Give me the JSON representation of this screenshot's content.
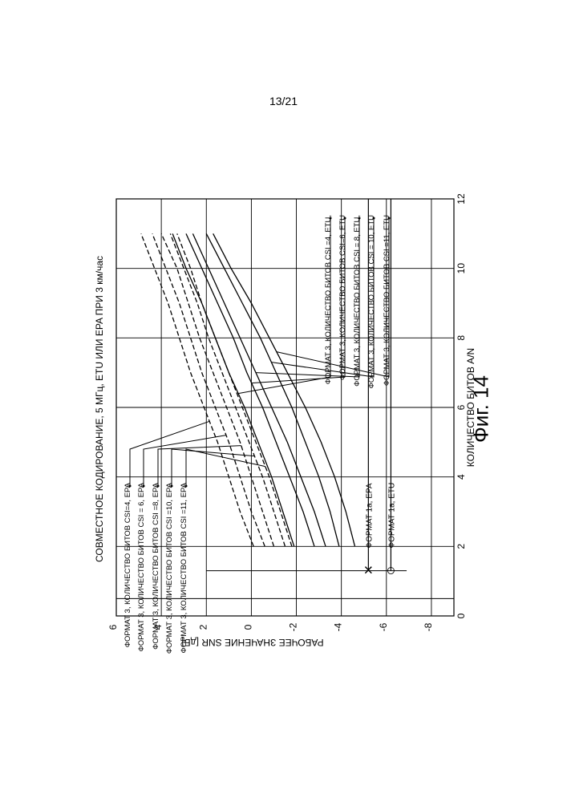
{
  "page_number": "13/21",
  "figure_caption": "Фиг. 14",
  "chart_data": {
    "type": "line",
    "title": "СОВМЕСТНОЕ КОДИРОВАНИЕ, 5 МГц, ETU ИЛИ EPA ПРИ 3 км/час",
    "xlabel": "КОЛИЧЕСТВО БИТОВ A/N",
    "ylabel": "РАБОЧЕЕ ЗНАЧЕНИЕ SNR [дБ]",
    "xlim": [
      0,
      12
    ],
    "ylim": [
      -9,
      6
    ],
    "x_ticks": [
      "0",
      "2",
      "4",
      "6",
      "8",
      "10",
      "12"
    ],
    "y_ticks": [
      "-8",
      "-6",
      "-4",
      "-2",
      "0",
      "2",
      "4",
      "6"
    ],
    "grid": true,
    "x": [
      2,
      3,
      4,
      5,
      6,
      7,
      8,
      9,
      10,
      11
    ],
    "series": [
      {
        "name": "ФОРМАТ 3, КОЛИЧЕСТВО БИТОВ CSI=4, EPA",
        "dash": "6,3",
        "values": [
          -0.1,
          0.5,
          1.0,
          1.5,
          2.1,
          2.7,
          3.2,
          3.7,
          4.3,
          4.9
        ]
      },
      {
        "name": "ФОРМАТ 3, КОЛИЧЕСТВО БИТОВ CSI = 6, EPA",
        "dash": "6,3",
        "values": [
          -0.6,
          0.0,
          0.5,
          1.0,
          1.6,
          2.2,
          2.7,
          3.2,
          3.8,
          4.4
        ]
      },
      {
        "name": "ФОРМАТ 3, КОЛИЧЕСТВО БИТОВ CSI =8, EPA",
        "dash": "6,3",
        "values": [
          -1.0,
          -0.5,
          0.0,
          0.5,
          1.1,
          1.7,
          2.3,
          2.8,
          3.3,
          4.0
        ]
      },
      {
        "name": "ФОРМАТ 3, КОЛИЧЕСТВО БИТОВ CSI =10, EPA",
        "dash": "6,3",
        "values": [
          -1.5,
          -1.0,
          -0.5,
          0.1,
          0.7,
          1.3,
          1.9,
          2.4,
          3.0,
          3.6
        ]
      },
      {
        "name": "ФОРМАТ 3, КОЛИЧЕСТВО БИТОВ CSI =11, EPA",
        "dash": "6,3",
        "values": [
          -1.8,
          -1.3,
          -0.8,
          -0.2,
          0.4,
          1.0,
          1.6,
          2.2,
          2.7,
          3.3
        ]
      },
      {
        "name": "ФОРМАТ 3, КОЛИЧЕСТВО БИТОВ CSI =4, ETU,",
        "dash": "",
        "values": [
          -1.9,
          -1.4,
          -0.9,
          -0.3,
          0.3,
          1.0,
          1.6,
          2.2,
          2.9,
          3.5
        ]
      },
      {
        "name": "ФОРМАТ 3, КОЛИЧЕСТВО БИТОВ CSI=6, ETU",
        "dash": "",
        "values": [
          -2.8,
          -2.3,
          -1.7,
          -1.1,
          -0.5,
          0.2,
          0.8,
          1.5,
          2.2,
          2.9
        ]
      },
      {
        "name": "ФОРМАТ 3, КОЛИЧЕСТВО БИТОВ CSI = 8, ETU,",
        "dash": "",
        "values": [
          -3.3,
          -2.8,
          -2.2,
          -1.6,
          -0.9,
          -0.2,
          0.5,
          1.2,
          1.9,
          2.6
        ]
      },
      {
        "name": "ФОРМАТ 3, КОЛИЧЕСТВО БИТОВ CSI = 10, ETU",
        "dash": "",
        "values": [
          -3.9,
          -3.5,
          -3.0,
          -2.4,
          -1.8,
          -1.1,
          -0.4,
          0.4,
          1.2,
          2.0
        ]
      },
      {
        "name": "ФОРМАТ 3, КОЛИЧЕСТВО БИТОВ CSI =11, ETU",
        "dash": "",
        "values": [
          -4.6,
          -4.2,
          -3.7,
          -3.1,
          -2.4,
          -1.6,
          -0.8,
          0.0,
          0.9,
          1.7
        ]
      }
    ],
    "reference_lines": [
      {
        "name": "ФОРМАТ 1а, EPA",
        "marker": "×",
        "y": -5.2,
        "x_from": 1.3,
        "x_to": 12
      },
      {
        "name": "ФОРМАТ 1а, ETU",
        "marker": "○",
        "y": -6.2,
        "x_from": 1.3,
        "x_to": 12
      }
    ],
    "vertical_ref_lines": [
      {
        "x": 1.3,
        "y_from": -6.9,
        "y_to": 2.0
      },
      {
        "x": 0.5,
        "y_from": -9.0,
        "y_to": 6.0
      }
    ]
  }
}
